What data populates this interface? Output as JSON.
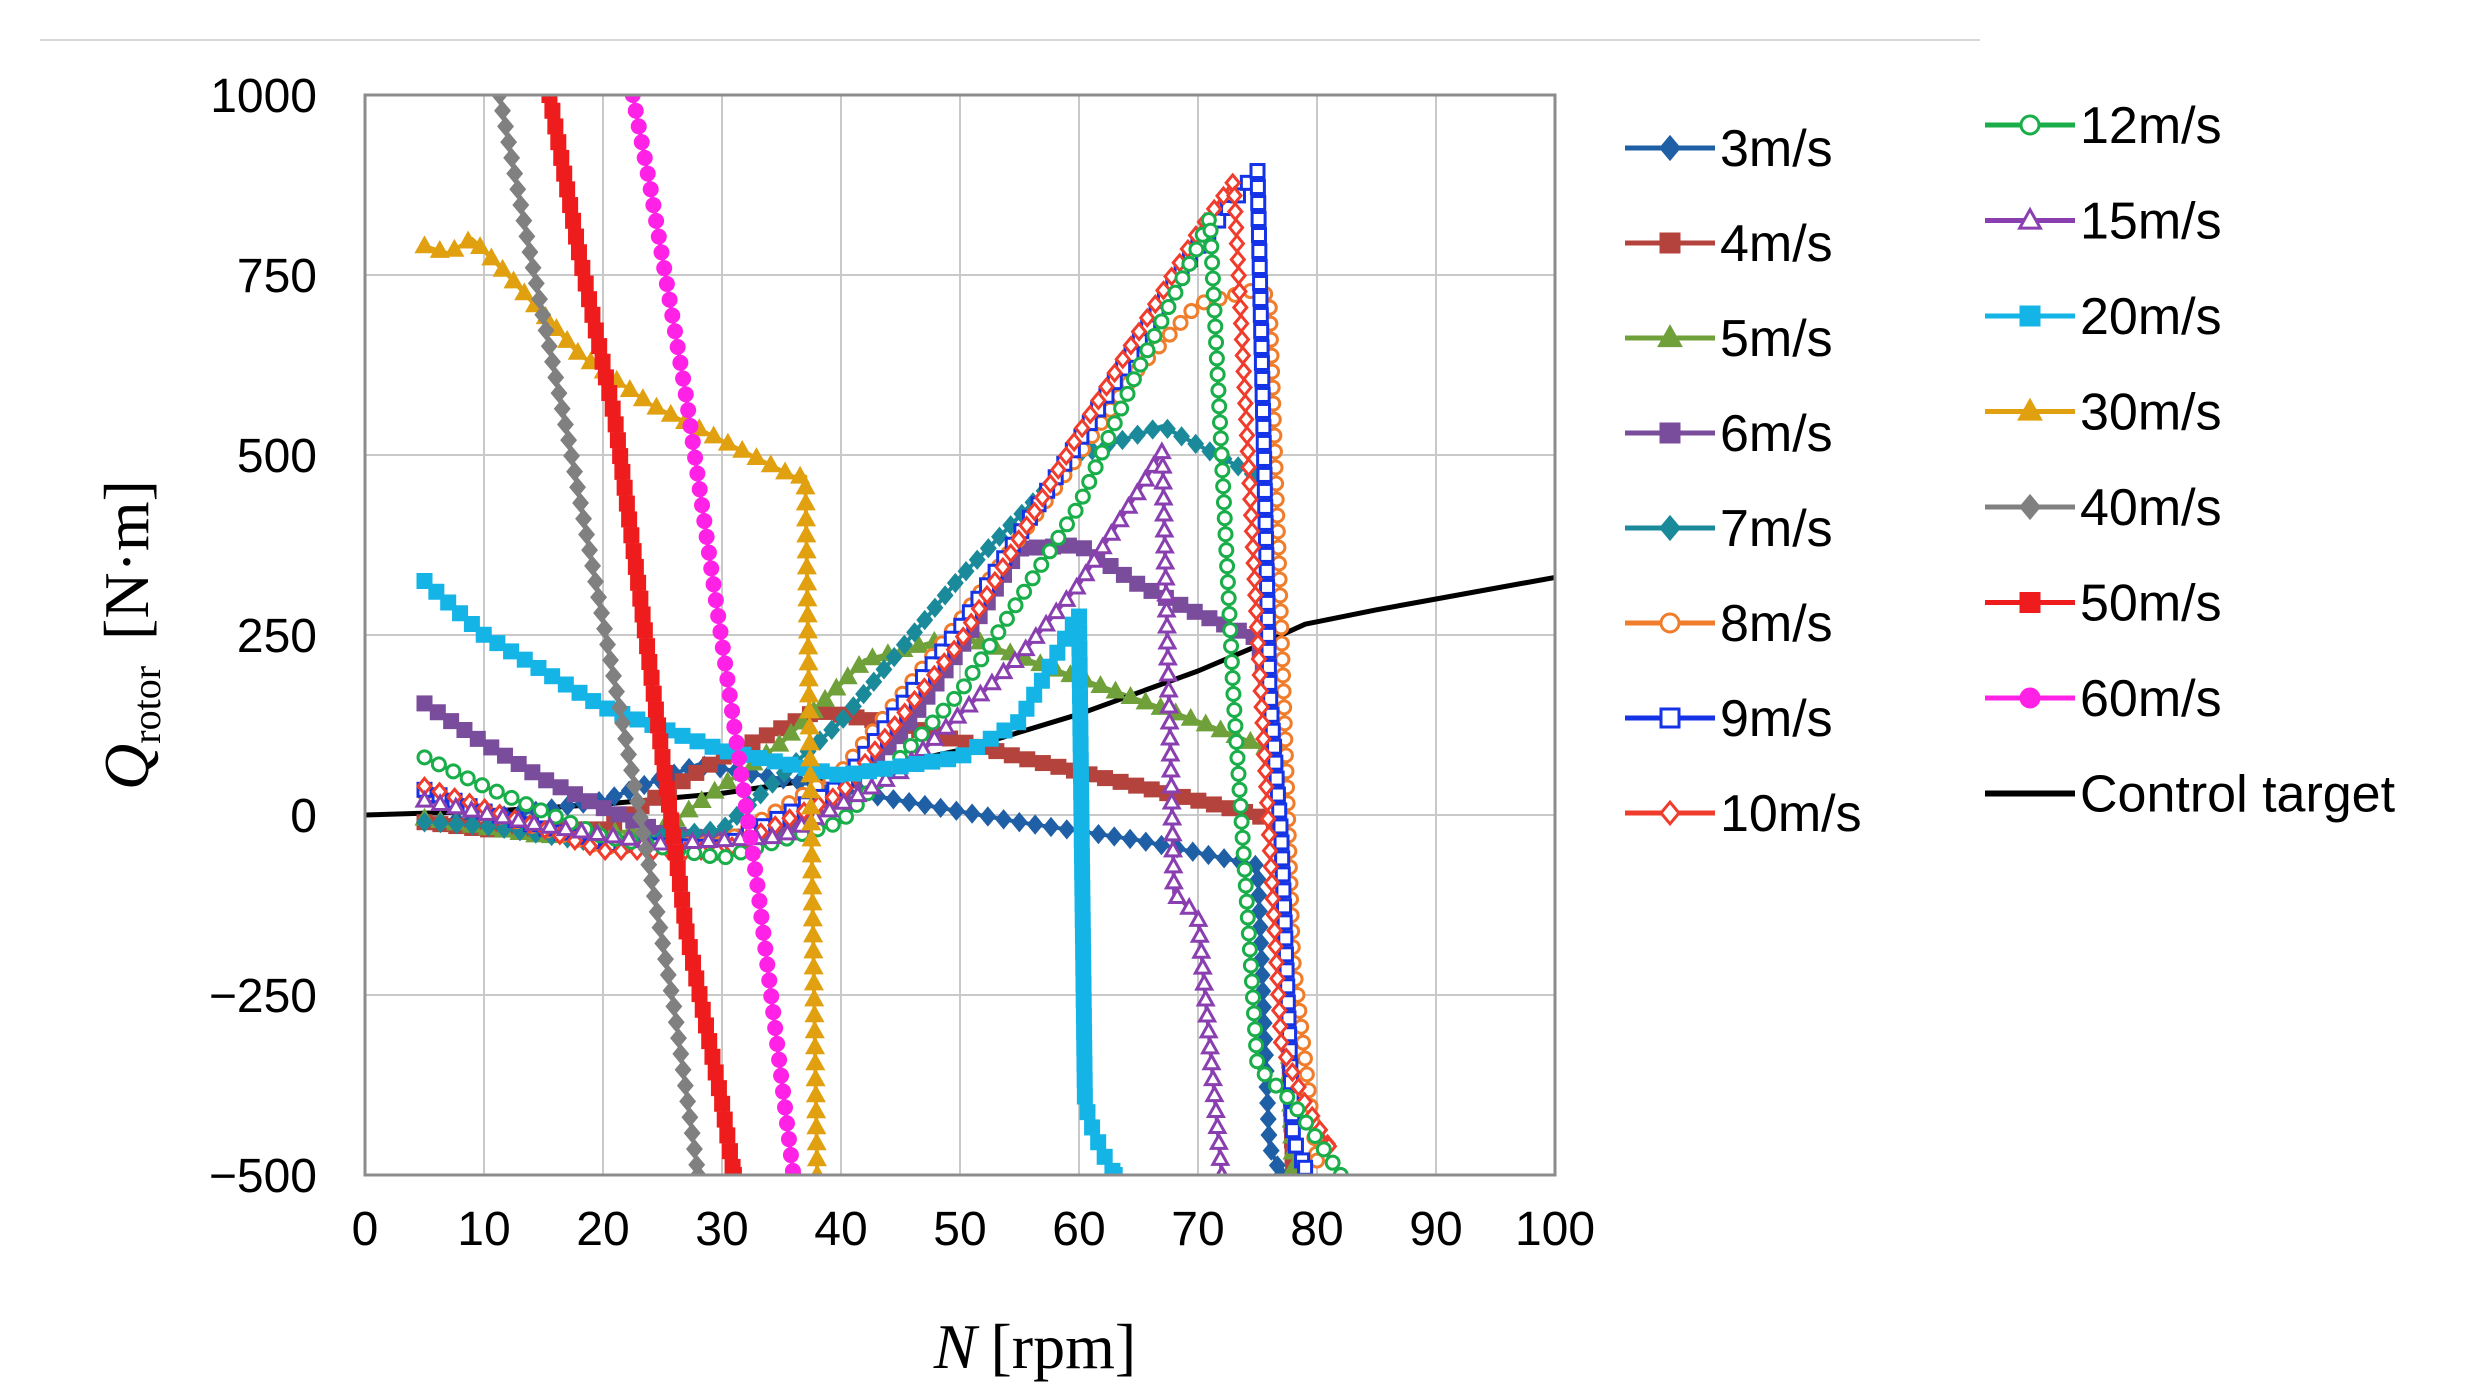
{
  "chart_data": {
    "type": "line",
    "title": "",
    "xlabel": {
      "symbol": "N",
      "unit": "[rpm]"
    },
    "ylabel": {
      "symbol": "Q",
      "subscript": "rotor",
      "unit": "[N·m]"
    },
    "xlim": [
      0,
      100
    ],
    "ylim": [
      -500,
      1000
    ],
    "x_ticks": [
      0,
      10,
      20,
      30,
      40,
      50,
      60,
      70,
      80,
      90,
      100
    ],
    "y_ticks": [
      1000,
      750,
      500,
      250,
      0,
      -250,
      -500
    ],
    "y_tick_labels": [
      "1000",
      "750",
      "500",
      "250",
      "0",
      "−250",
      "−500"
    ],
    "grid": true,
    "legend_position": "right",
    "series": [
      {
        "name": "3m/s",
        "color": "#1f5fa5",
        "marker": "diamond-filled",
        "x": [
          5,
          10,
          20,
          28,
          35,
          45,
          55,
          65,
          75,
          76,
          77
        ],
        "y": [
          -10,
          -5,
          20,
          70,
          50,
          20,
          -10,
          -35,
          -70,
          -460,
          -500
        ]
      },
      {
        "name": "4m/s",
        "color": "#b5433d",
        "marker": "square-filled",
        "x": [
          5,
          10,
          20,
          30,
          38,
          45,
          55,
          65,
          75,
          77,
          78
        ],
        "y": [
          -10,
          -20,
          -20,
          80,
          145,
          125,
          80,
          40,
          0,
          -20,
          -500
        ]
      },
      {
        "name": "5m/s",
        "color": "#6fa03a",
        "marker": "triangle-filled",
        "x": [
          5,
          15,
          25,
          35,
          42,
          50,
          60,
          70,
          77,
          78
        ],
        "y": [
          -5,
          -30,
          -20,
          100,
          215,
          250,
          190,
          130,
          85,
          -500
        ]
      },
      {
        "name": "6m/s",
        "color": "#7a4c9c",
        "marker": "square-filled",
        "x": [
          5,
          10,
          15,
          20,
          25,
          30,
          35,
          40,
          45,
          50,
          55,
          60,
          65,
          70,
          75,
          76
        ],
        "y": [
          155,
          100,
          50,
          10,
          -25,
          -35,
          -20,
          30,
          110,
          230,
          370,
          375,
          320,
          280,
          245,
          160
        ]
      },
      {
        "name": "7m/s",
        "color": "#1a8a9a",
        "marker": "diamond-filled",
        "x": [
          5,
          10,
          20,
          30,
          40,
          50,
          60,
          67,
          75
        ],
        "y": [
          -10,
          -15,
          -40,
          -20,
          130,
          330,
          500,
          540,
          470
        ]
      },
      {
        "name": "8m/s",
        "color": "#ef7d2b",
        "marker": "circle-open",
        "x": [
          5,
          10,
          20,
          30,
          40,
          50,
          60,
          65,
          70,
          75,
          76,
          78,
          80
        ],
        "y": [
          30,
          5,
          -45,
          -40,
          60,
          270,
          500,
          620,
          710,
          730,
          720,
          -200,
          -480
        ]
      },
      {
        "name": "9m/s",
        "color": "#1432e6",
        "marker": "square-open",
        "x": [
          5,
          10,
          20,
          30,
          40,
          50,
          60,
          70,
          75,
          76,
          77,
          78,
          79
        ],
        "y": [
          35,
          5,
          -40,
          -45,
          40,
          260,
          520,
          790,
          895,
          175,
          -30,
          -450,
          -490
        ]
      },
      {
        "name": "10m/s",
        "color": "#f03c2c",
        "marker": "diamond-open",
        "x": [
          5,
          10,
          20,
          30,
          40,
          50,
          60,
          70,
          73,
          75,
          77,
          79,
          81
        ],
        "y": [
          40,
          10,
          -50,
          -50,
          30,
          240,
          530,
          810,
          880,
          250,
          -320,
          -400,
          -460
        ]
      },
      {
        "name": "12m/s",
        "color": "#1aae4a",
        "marker": "circle-open",
        "x": [
          5,
          10,
          20,
          30,
          40,
          50,
          60,
          65,
          70,
          71,
          73,
          75,
          78,
          82
        ],
        "y": [
          80,
          40,
          -30,
          -60,
          -10,
          170,
          430,
          620,
          790,
          830,
          160,
          -350,
          -400,
          -500
        ]
      },
      {
        "name": "15m/s",
        "color": "#8a3fb0",
        "marker": "triangle-open",
        "x": [
          5,
          15,
          25,
          35,
          45,
          55,
          60,
          65,
          67,
          68,
          70,
          72
        ],
        "y": [
          20,
          -15,
          -40,
          -30,
          60,
          220,
          320,
          450,
          505,
          -110,
          -140,
          -500
        ]
      },
      {
        "name": "20m/s",
        "color": "#14b4e6",
        "marker": "square-filled",
        "x": [
          5,
          10,
          20,
          30,
          40,
          50,
          55,
          60,
          60.5,
          61,
          62,
          63
        ],
        "y": [
          325,
          250,
          150,
          90,
          55,
          80,
          130,
          280,
          -400,
          -430,
          -470,
          -500
        ]
      },
      {
        "name": "30m/s",
        "color": "#e0a010",
        "marker": "triangle-filled",
        "x": [
          5,
          7,
          9,
          12,
          18,
          24,
          30,
          36,
          37,
          38
        ],
        "y": [
          790,
          780,
          800,
          750,
          640,
          570,
          520,
          470,
          470,
          -500
        ]
      },
      {
        "name": "40m/s",
        "color": "#808080",
        "marker": "diamond-filled",
        "x": [
          11.3,
          14,
          17,
          20,
          23,
          26,
          28
        ],
        "y": [
          1000,
          770,
          530,
          270,
          10,
          -270,
          -500
        ]
      },
      {
        "name": "50m/s",
        "color": "#ee1c1c",
        "marker": "square-filled",
        "x": [
          15.5,
          18,
          21,
          24,
          27,
          30,
          31
        ],
        "y": [
          1000,
          780,
          550,
          200,
          -160,
          -400,
          -500
        ]
      },
      {
        "name": "60m/s",
        "color": "#ff22e6",
        "marker": "circle-filled",
        "x": [
          22.5,
          24,
          27,
          30,
          33,
          36
        ],
        "y": [
          1000,
          870,
          580,
          240,
          -100,
          -500
        ]
      },
      {
        "name": "Control target",
        "color": "#000000",
        "marker": "none",
        "x": [
          0,
          10,
          20,
          30,
          40,
          50,
          60,
          70,
          75,
          79,
          85,
          90,
          100
        ],
        "y": [
          0,
          5,
          15,
          30,
          55,
          90,
          140,
          200,
          235,
          265,
          285,
          300,
          330
        ]
      }
    ]
  }
}
